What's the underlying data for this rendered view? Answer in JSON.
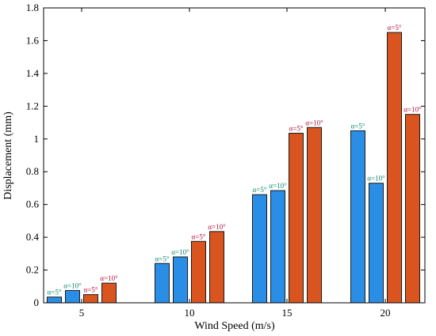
{
  "chart_data": {
    "type": "bar",
    "xlabel": "Wind Speed  (m/s)",
    "ylabel": "Displacement  (mm)",
    "categories": [
      "5",
      "10",
      "15",
      "20"
    ],
    "ylim": [
      0,
      1.8
    ],
    "yticks": [
      "0",
      "0.2",
      "0.4",
      "0.6",
      "0.8",
      "1",
      "1.2",
      "1.4",
      "1.6",
      "1.8"
    ],
    "grid": false,
    "series": [
      {
        "label": "α=5°",
        "values": [
          0.035,
          0.24,
          0.66,
          1.05
        ],
        "color": "#2b8ee6",
        "label_color": "#0a8a6a"
      },
      {
        "label": "α=10°",
        "values": [
          0.075,
          0.28,
          0.685,
          0.73
        ],
        "color": "#2b8ee6",
        "label_color": "#0a8a6a"
      },
      {
        "label": "α=5°",
        "values": [
          0.05,
          0.375,
          1.035,
          1.65
        ],
        "color": "#d9541e",
        "label_color": "#b0103a"
      },
      {
        "label": "α=10°",
        "values": [
          0.12,
          0.435,
          1.07,
          1.15
        ],
        "color": "#d9541e",
        "label_color": "#b0103a"
      }
    ]
  }
}
